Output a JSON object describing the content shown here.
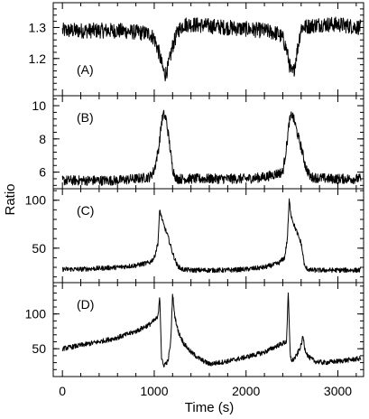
{
  "chart_data": {
    "type": "line",
    "xlabel": "Time (s)",
    "ylabel": "Ratio",
    "xlim": [
      -100,
      3280
    ],
    "x_major_ticks": [
      0,
      1000,
      2000,
      3000
    ],
    "x_tick_labels": [
      "0",
      "1000",
      "2000",
      "3000"
    ],
    "x_minor_step": 200,
    "panels": [
      {
        "label": "(A)",
        "ylim": [
          1.08,
          1.38
        ],
        "y_ticks": [
          1.2,
          1.3
        ],
        "y_tick_labels": [
          "1.2",
          "1.3"
        ],
        "y_minor_step": 0.02,
        "noise": 0.025,
        "series": {
          "x": [
            0,
            200,
            400,
            600,
            800,
            950,
            1000,
            1050,
            1100,
            1120,
            1150,
            1200,
            1260,
            1320,
            1400,
            1600,
            1800,
            2000,
            2200,
            2350,
            2400,
            2440,
            2480,
            2500,
            2520,
            2560,
            2600,
            2800,
            3000,
            3250
          ],
          "y": [
            1.29,
            1.29,
            1.29,
            1.29,
            1.285,
            1.28,
            1.265,
            1.22,
            1.16,
            1.15,
            1.17,
            1.24,
            1.29,
            1.31,
            1.31,
            1.305,
            1.3,
            1.295,
            1.29,
            1.28,
            1.265,
            1.23,
            1.17,
            1.15,
            1.16,
            1.23,
            1.3,
            1.31,
            1.31,
            1.3
          ]
        }
      },
      {
        "label": "(B)",
        "ylim": [
          5.0,
          10.6
        ],
        "y_ticks": [
          6,
          8,
          10
        ],
        "y_tick_labels": [
          "6",
          "8",
          "10"
        ],
        "y_minor_step": 0.4,
        "noise": 0.3,
        "series": {
          "x": [
            0,
            200,
            400,
            600,
            800,
            950,
            1000,
            1050,
            1080,
            1100,
            1130,
            1160,
            1200,
            1240,
            1300,
            1500,
            1800,
            2000,
            2200,
            2400,
            2440,
            2470,
            2500,
            2530,
            2560,
            2600,
            2650,
            2700,
            2900,
            3250
          ],
          "y": [
            5.5,
            5.5,
            5.5,
            5.5,
            5.6,
            5.7,
            6.1,
            7.5,
            9.0,
            9.5,
            9.2,
            8.0,
            6.2,
            5.6,
            5.6,
            5.6,
            5.6,
            5.6,
            5.7,
            6.0,
            7.5,
            9.0,
            9.5,
            9.0,
            8.3,
            7.5,
            6.3,
            5.7,
            5.6,
            5.6
          ]
        }
      },
      {
        "label": "(C)",
        "ylim": [
          14,
          112
        ],
        "y_ticks": [
          50,
          100
        ],
        "y_tick_labels": [
          "50",
          "100"
        ],
        "y_minor_step": 10,
        "noise": 2.5,
        "series": {
          "x": [
            0,
            200,
            400,
            600,
            800,
            950,
            1000,
            1040,
            1060,
            1080,
            1100,
            1150,
            1200,
            1250,
            1300,
            1400,
            1600,
            1800,
            2000,
            2200,
            2350,
            2420,
            2450,
            2470,
            2490,
            2520,
            2560,
            2600,
            2640,
            2700,
            2900,
            3250
          ],
          "y": [
            28,
            28,
            29,
            30,
            32,
            35,
            40,
            55,
            90,
            82,
            75,
            62,
            45,
            32,
            28,
            27,
            27,
            27,
            28,
            30,
            34,
            40,
            60,
            100,
            85,
            75,
            65,
            55,
            30,
            27,
            27,
            27
          ]
        }
      },
      {
        "label": "(D)",
        "ylim": [
          10,
          145
        ],
        "y_ticks": [
          50,
          100
        ],
        "y_tick_labels": [
          "50",
          "100"
        ],
        "y_minor_step": 10,
        "noise": 3.5,
        "series": {
          "x": [
            0,
            200,
            400,
            600,
            800,
            950,
            1040,
            1060,
            1080,
            1100,
            1150,
            1180,
            1200,
            1220,
            1260,
            1320,
            1400,
            1500,
            1600,
            1800,
            2000,
            2200,
            2350,
            2440,
            2460,
            2480,
            2500,
            2550,
            2600,
            2620,
            2640,
            2680,
            2750,
            2850,
            3000,
            3250
          ],
          "y": [
            50,
            55,
            60,
            66,
            75,
            85,
            95,
            128,
            35,
            26,
            32,
            60,
            130,
            100,
            75,
            58,
            45,
            35,
            28,
            32,
            38,
            45,
            55,
            60,
            130,
            42,
            32,
            40,
            55,
            68,
            50,
            38,
            32,
            30,
            32,
            36
          ]
        }
      }
    ]
  }
}
